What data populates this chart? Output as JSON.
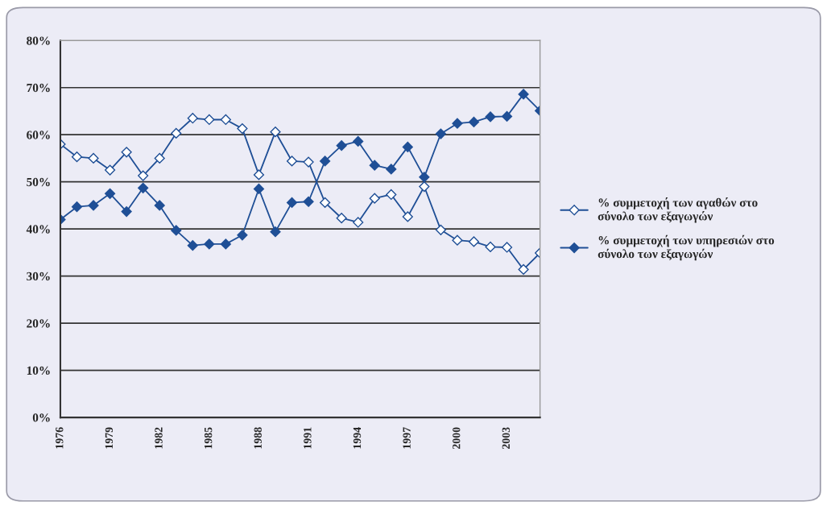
{
  "chart_data": {
    "type": "line",
    "categories": [
      "1976",
      null,
      null,
      "1979",
      null,
      null,
      "1982",
      null,
      null,
      "1985",
      null,
      null,
      "1988",
      null,
      null,
      "1991",
      null,
      null,
      "1994",
      null,
      null,
      "1997",
      null,
      null,
      "2000",
      null,
      null,
      "2003",
      null,
      null
    ],
    "series": [
      {
        "name": "% συμμετοχή των αγαθών στο σύνολο των εξαγωγών",
        "color": "#1f4f96",
        "values": [
          58,
          55.3,
          55,
          52.5,
          56.3,
          51.3,
          55,
          60.3,
          63.5,
          63.2,
          63.2,
          61.3,
          51.5,
          60.6,
          54.4,
          54.2,
          45.6,
          42.3,
          41.4,
          46.5,
          47.3,
          42.6,
          49,
          39.8,
          37.6,
          37.3,
          36.2,
          36.1,
          31.4,
          34.9
        ]
      },
      {
        "name": "% συμμετοχή των υπηρεσιών στο σύνολο των εξαγωγών",
        "color": "#1f4f96",
        "values": [
          42,
          44.7,
          45,
          47.5,
          43.7,
          48.7,
          45,
          39.7,
          36.5,
          36.8,
          36.8,
          38.7,
          48.5,
          39.4,
          45.6,
          45.8,
          54.4,
          57.7,
          58.6,
          53.5,
          52.7,
          57.4,
          51,
          60.2,
          62.4,
          62.7,
          63.8,
          63.9,
          68.6,
          65.1
        ]
      }
    ],
    "ylim": [
      0,
      80
    ],
    "yticks": [
      {
        "value": 0,
        "label": "0%"
      },
      {
        "value": 10,
        "label": "10%"
      },
      {
        "value": 20,
        "label": "20%"
      },
      {
        "value": 30,
        "label": "30%"
      },
      {
        "value": 40,
        "label": "40%"
      },
      {
        "value": 50,
        "label": "50%"
      },
      {
        "value": 60,
        "label": "60%"
      },
      {
        "value": 70,
        "label": "70%"
      },
      {
        "value": 80,
        "label": "80%"
      }
    ],
    "grid": "y",
    "legend": "right",
    "marker": "diamond",
    "line_style": "solid"
  }
}
